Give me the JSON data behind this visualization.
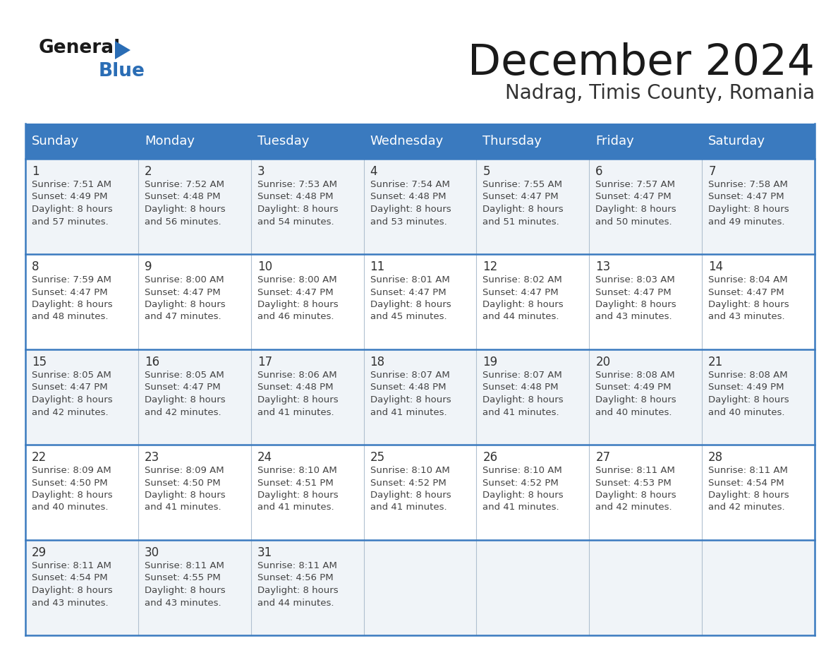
{
  "title": "December 2024",
  "subtitle": "Nadrag, Timis County, Romania",
  "header_color": "#3a7abf",
  "header_text_color": "#ffffff",
  "cell_bg_even": "#f0f4f8",
  "cell_bg_odd": "#ffffff",
  "border_color": "#3a7abf",
  "sep_color": "#b0c4d8",
  "text_color": "#333333",
  "days_of_week": [
    "Sunday",
    "Monday",
    "Tuesday",
    "Wednesday",
    "Thursday",
    "Friday",
    "Saturday"
  ],
  "weeks": [
    [
      {
        "day": 1,
        "sunrise": "7:51 AM",
        "sunset": "4:49 PM",
        "daylight_min": 57
      },
      {
        "day": 2,
        "sunrise": "7:52 AM",
        "sunset": "4:48 PM",
        "daylight_min": 56
      },
      {
        "day": 3,
        "sunrise": "7:53 AM",
        "sunset": "4:48 PM",
        "daylight_min": 54
      },
      {
        "day": 4,
        "sunrise": "7:54 AM",
        "sunset": "4:48 PM",
        "daylight_min": 53
      },
      {
        "day": 5,
        "sunrise": "7:55 AM",
        "sunset": "4:47 PM",
        "daylight_min": 51
      },
      {
        "day": 6,
        "sunrise": "7:57 AM",
        "sunset": "4:47 PM",
        "daylight_min": 50
      },
      {
        "day": 7,
        "sunrise": "7:58 AM",
        "sunset": "4:47 PM",
        "daylight_min": 49
      }
    ],
    [
      {
        "day": 8,
        "sunrise": "7:59 AM",
        "sunset": "4:47 PM",
        "daylight_min": 48
      },
      {
        "day": 9,
        "sunrise": "8:00 AM",
        "sunset": "4:47 PM",
        "daylight_min": 47
      },
      {
        "day": 10,
        "sunrise": "8:00 AM",
        "sunset": "4:47 PM",
        "daylight_min": 46
      },
      {
        "day": 11,
        "sunrise": "8:01 AM",
        "sunset": "4:47 PM",
        "daylight_min": 45
      },
      {
        "day": 12,
        "sunrise": "8:02 AM",
        "sunset": "4:47 PM",
        "daylight_min": 44
      },
      {
        "day": 13,
        "sunrise": "8:03 AM",
        "sunset": "4:47 PM",
        "daylight_min": 43
      },
      {
        "day": 14,
        "sunrise": "8:04 AM",
        "sunset": "4:47 PM",
        "daylight_min": 43
      }
    ],
    [
      {
        "day": 15,
        "sunrise": "8:05 AM",
        "sunset": "4:47 PM",
        "daylight_min": 42
      },
      {
        "day": 16,
        "sunrise": "8:05 AM",
        "sunset": "4:47 PM",
        "daylight_min": 42
      },
      {
        "day": 17,
        "sunrise": "8:06 AM",
        "sunset": "4:48 PM",
        "daylight_min": 41
      },
      {
        "day": 18,
        "sunrise": "8:07 AM",
        "sunset": "4:48 PM",
        "daylight_min": 41
      },
      {
        "day": 19,
        "sunrise": "8:07 AM",
        "sunset": "4:48 PM",
        "daylight_min": 41
      },
      {
        "day": 20,
        "sunrise": "8:08 AM",
        "sunset": "4:49 PM",
        "daylight_min": 40
      },
      {
        "day": 21,
        "sunrise": "8:08 AM",
        "sunset": "4:49 PM",
        "daylight_min": 40
      }
    ],
    [
      {
        "day": 22,
        "sunrise": "8:09 AM",
        "sunset": "4:50 PM",
        "daylight_min": 40
      },
      {
        "day": 23,
        "sunrise": "8:09 AM",
        "sunset": "4:50 PM",
        "daylight_min": 41
      },
      {
        "day": 24,
        "sunrise": "8:10 AM",
        "sunset": "4:51 PM",
        "daylight_min": 41
      },
      {
        "day": 25,
        "sunrise": "8:10 AM",
        "sunset": "4:52 PM",
        "daylight_min": 41
      },
      {
        "day": 26,
        "sunrise": "8:10 AM",
        "sunset": "4:52 PM",
        "daylight_min": 41
      },
      {
        "day": 27,
        "sunrise": "8:11 AM",
        "sunset": "4:53 PM",
        "daylight_min": 42
      },
      {
        "day": 28,
        "sunrise": "8:11 AM",
        "sunset": "4:54 PM",
        "daylight_min": 42
      }
    ],
    [
      {
        "day": 29,
        "sunrise": "8:11 AM",
        "sunset": "4:54 PM",
        "daylight_min": 43
      },
      {
        "day": 30,
        "sunrise": "8:11 AM",
        "sunset": "4:55 PM",
        "daylight_min": 43
      },
      {
        "day": 31,
        "sunrise": "8:11 AM",
        "sunset": "4:56 PM",
        "daylight_min": 44
      },
      null,
      null,
      null,
      null
    ]
  ]
}
